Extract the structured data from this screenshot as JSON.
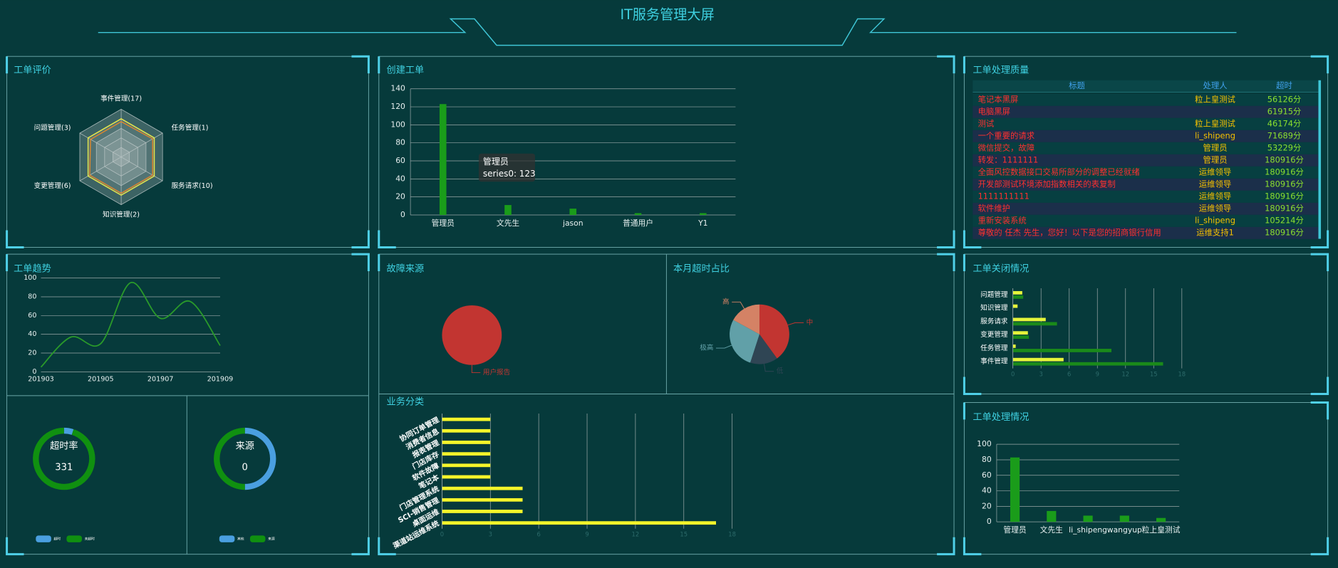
{
  "header": {
    "title": "IT服务管理大屏"
  },
  "quality_table": {
    "title": "工单处理质量",
    "columns": [
      "标题",
      "处理人",
      "超时"
    ],
    "colors": {
      "header": "#3fa0ea",
      "title": "#ff3030",
      "handler": "#f5c000",
      "time": "#8be02e"
    },
    "rows": [
      [
        "笔记本黑屏",
        "粒上皇测试",
        "56126分"
      ],
      [
        "电脑黑屏",
        null,
        "61915分"
      ],
      [
        "测试",
        "粒上皇测试",
        "46174分"
      ],
      [
        "一个重要的请求",
        "li_shipeng",
        "71689分"
      ],
      [
        "微信提交，故障",
        "管理员",
        "53229分"
      ],
      [
        "转发：1111111",
        "管理员",
        "180916分"
      ],
      [
        "全面风控数据接口交易所部分的调整已经就绪",
        "运维领导",
        "180916分"
      ],
      [
        "开发部测试环境添加指数相关的表复制",
        "运维领导",
        "180916分"
      ],
      [
        "1111111111",
        "运维领导",
        "180916分"
      ],
      [
        "软件维护",
        "运维领导",
        "180916分"
      ],
      [
        "重新安装系统",
        "li_shipeng",
        "105214分"
      ],
      [
        "尊敬的 任杰 先生，您好！以下是您的招商银行信用",
        "运维支持1",
        "180916分"
      ]
    ]
  },
  "chart_data": [
    {
      "type": "radar",
      "title": "工单评价",
      "indicators": [
        "事件管理(17)",
        "任务管理(1)",
        "服务请求(10)",
        "知识管理(2)",
        "变更管理(6)",
        "问题管理(3)"
      ],
      "rlim": [
        0,
        100
      ],
      "series": [
        {
          "color": "#e8e84a",
          "values": [
            80,
            80,
            80,
            80,
            80,
            80
          ]
        },
        {
          "color": "#e0872b",
          "values": [
            74,
            76,
            76,
            76,
            76,
            74
          ]
        }
      ]
    },
    {
      "type": "bar",
      "title": "创建工单",
      "categories": [
        "管理员",
        "文先生",
        "jason",
        "普通用户",
        "Y1"
      ],
      "values": [
        123,
        11,
        7,
        2,
        2
      ],
      "color": "#1a9c1a",
      "ylim": [
        0,
        140
      ],
      "yticks": [
        0,
        20,
        40,
        60,
        80,
        100,
        120,
        140
      ],
      "grid": true,
      "tooltip": {
        "title": "管理员",
        "text": "series0: 123"
      }
    },
    {
      "type": "line",
      "title": "工单趋势",
      "categories": [
        "201903",
        null,
        "201905",
        null,
        "201907",
        null,
        "201909"
      ],
      "values": [
        5,
        37,
        30,
        95,
        57,
        75,
        28
      ],
      "color": "#2a9a2a",
      "ylim": [
        0,
        100
      ],
      "yticks": [
        0,
        20,
        40,
        60,
        80,
        100
      ],
      "grid": true,
      "smooth": true
    },
    {
      "type": "gauge",
      "label": "超时率",
      "value": 331,
      "series": [
        {
          "name": "超时",
          "color": "#4a9fe0",
          "value": 5
        },
        {
          "name": "未超时",
          "color": "#109010",
          "value": 95
        }
      ]
    },
    {
      "type": "gauge",
      "label": "来源",
      "value": 0,
      "series": [
        {
          "name": "其他",
          "color": "#4a9fe0",
          "value": 50
        },
        {
          "name": "来源",
          "color": "#109010",
          "value": 50
        }
      ]
    },
    {
      "type": "pie",
      "title": "故障来源",
      "categories": [
        "用户报告"
      ],
      "values": [
        100
      ],
      "colors": [
        "#c23531"
      ]
    },
    {
      "type": "pie",
      "title": "本月超时占比",
      "categories": [
        "中",
        "低",
        "极高",
        "高"
      ],
      "values": [
        40,
        15,
        28,
        17
      ],
      "colors": [
        "#c23531",
        "#2f4554",
        "#61a0a8",
        "#d48265"
      ]
    },
    {
      "type": "hbar",
      "title": "业务分类",
      "categories": [
        "协同订单管理",
        "消费者信息",
        "报表管理",
        "门店库存",
        "软件故障",
        "笔记本",
        "门店管理系统",
        "SCI-销售管理",
        "桌面运维",
        "渠道站运维系统"
      ],
      "values": [
        3,
        3,
        3,
        3,
        3,
        3,
        5,
        5,
        5,
        17
      ],
      "color": "#f5f52a",
      "xlim": [
        0,
        18
      ],
      "xticks": [
        0,
        3,
        6,
        9,
        12,
        15,
        18
      ],
      "grid": true
    },
    {
      "type": "hbar",
      "title": "工单关闭情况",
      "categories": [
        "问题管理",
        "知识管理",
        "服务请求",
        "变更管理",
        "任务管理",
        "事件管理"
      ],
      "series": [
        {
          "color": "#e6f53a",
          "values": [
            1,
            0.5,
            3.5,
            1.6,
            0.3,
            5.4
          ]
        },
        {
          "color": "#1a8a1a",
          "values": [
            1.1,
            0,
            4.7,
            1.7,
            10.5,
            16
          ]
        }
      ],
      "xlim": [
        0,
        18
      ],
      "xticks": [
        0,
        3,
        6,
        9,
        12,
        15,
        18
      ],
      "grid": true
    },
    {
      "type": "bar",
      "title": "工单处理情况",
      "categories": [
        "管理员",
        "文先生",
        "li_shipeng",
        "wangyup",
        "粒上皇测试"
      ],
      "values": [
        83,
        14,
        8,
        8,
        5
      ],
      "color": "#1a9c1a",
      "ylim": [
        0,
        100
      ],
      "yticks": [
        0,
        20,
        40,
        60,
        80,
        100
      ],
      "grid": true
    }
  ]
}
